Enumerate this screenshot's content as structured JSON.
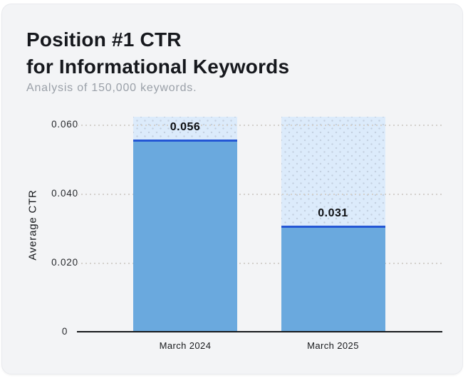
{
  "card": {
    "title_line1": "Position #1 CTR",
    "title_line2": "for Informational Keywords",
    "subtitle": "Analysis of 150,000 keywords."
  },
  "chart_data": {
    "type": "bar",
    "title": "Position #1 CTR for Informational Keywords",
    "subtitle": "Analysis of 150,000 keywords.",
    "categories": [
      "March 2024",
      "March 2025"
    ],
    "values": [
      0.056,
      0.031
    ],
    "value_labels": [
      "0.056",
      "0.031"
    ],
    "xlabel": "",
    "ylabel": "Average CTR",
    "ylim": [
      0,
      0.0625
    ],
    "yticks": [
      0,
      0.02,
      0.04,
      0.06
    ],
    "ytick_labels": [
      "0",
      "0.020",
      "0.040",
      "0.060"
    ],
    "grid": "horizontal dotted",
    "legend": "none",
    "colors": {
      "bar_fill": "#6aa9de",
      "bar_top_line": "#2457d5",
      "background_column": "#dcebfb",
      "background_column_dots": "#c2cfdf",
      "gridline": "#d3d0cc",
      "axis_line": "#17191c",
      "card_background": "#f3f4f6",
      "page_background": "#ffffff",
      "title_color": "#16181d",
      "subtitle_color": "#9aa0a8"
    }
  }
}
